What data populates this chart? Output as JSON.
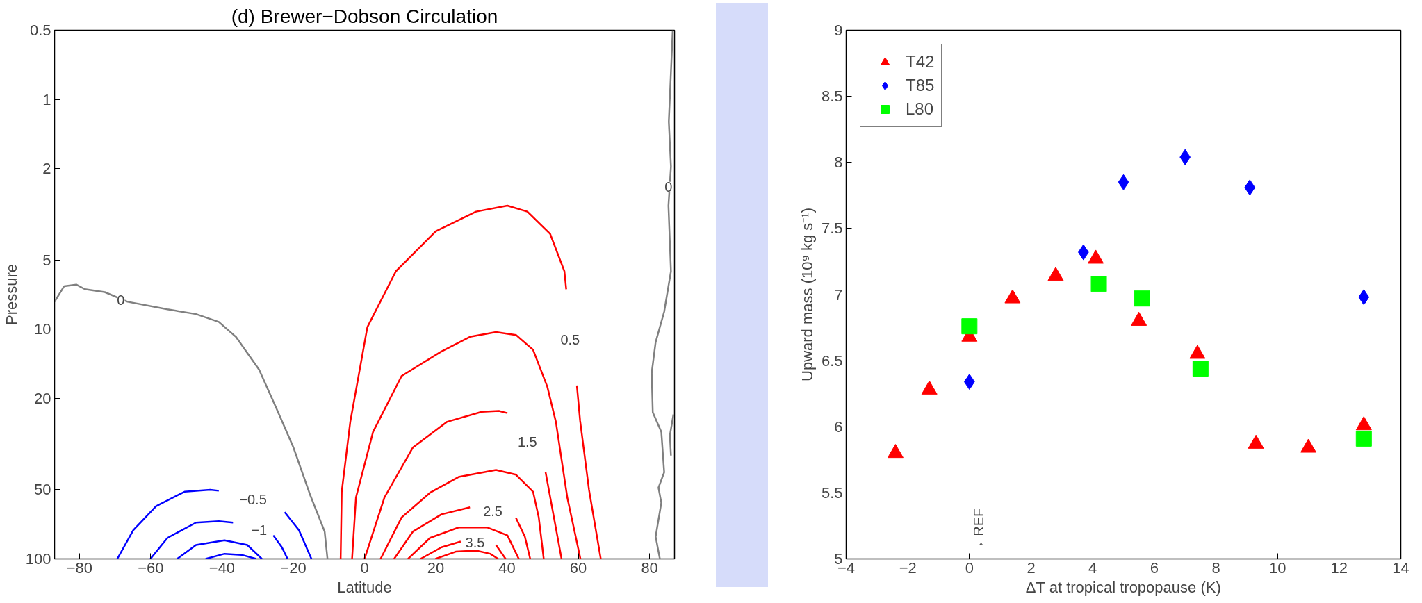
{
  "chart_data": [
    {
      "type": "line",
      "title": "(d) Brewer−Dobson Circulation",
      "xlabel": "Latitude",
      "ylabel": "Pressure",
      "log": "y",
      "xlim": [
        -87,
        87
      ],
      "xticks": [
        -80,
        -60,
        -40,
        -20,
        0,
        20,
        40,
        60,
        80
      ],
      "ylim": [
        100,
        0.5
      ],
      "yticks": [
        0.5,
        1,
        2,
        5,
        10,
        20,
        50,
        100
      ],
      "grid": false,
      "legend": false,
      "series": [
        {
          "color": "#808080",
          "x": [
            -87,
            -84.3,
            -80.9,
            -78.5,
            -72.9,
            -66.5,
            -55.3,
            -47.3,
            -40.9,
            -36.1,
            -29.6,
            -24.8,
            -20,
            -15.2,
            -11.2,
            -10.4
          ],
          "values": [
            7.6,
            6.5,
            6.4,
            6.7,
            6.9,
            7.6,
            8.2,
            8.6,
            9.3,
            10.8,
            15,
            22,
            32.6,
            53,
            76,
            100
          ]
        },
        {
          "color": "#808080",
          "x": [
            86.5,
            85.4,
            86,
            85.3,
            86,
            84.1,
            81.7,
            80.6,
            80.9,
            83.3,
            84.1,
            82.5,
            83.3,
            81.7,
            82.9
          ],
          "values": [
            0.5,
            1.25,
            1.96,
            2.9,
            5.6,
            8.4,
            11.4,
            15.5,
            23,
            28,
            42,
            49,
            57,
            80,
            100
          ]
        },
        {
          "color": "#808080",
          "x": [
            86.7,
            85.7,
            86
          ],
          "values": [
            23.5,
            29,
            35.5
          ]
        },
        {
          "color": "#0000ff",
          "x": [
            -69.4,
            -64.9,
            -58.5,
            -50.5,
            -43.3,
            -40.9,
            -31.3,
            -22.4,
            -18.4,
            -14.9
          ],
          "values": [
            100,
            75,
            59,
            51,
            50,
            50.5,
            null,
            62.6,
            75,
            100
          ]
        },
        {
          "color": "#0000ff",
          "x": [
            -60.1,
            -55.3,
            -47.3,
            -40.9,
            -36.9,
            -29.6,
            -25.6,
            -23.2,
            -21.6
          ],
          "values": [
            100,
            81,
            69.5,
            68.5,
            69.5,
            null,
            79,
            89,
            100
          ]
        },
        {
          "color": "#0000ff",
          "x": [
            -52.6,
            -47.3,
            -39.3,
            -32.9,
            -28.8
          ],
          "values": [
            100,
            87,
            83,
            87,
            100
          ]
        },
        {
          "color": "#0000ff",
          "x": [
            -44.6,
            -39.3,
            -34.5,
            -30.4
          ],
          "values": [
            100,
            95,
            96,
            100
          ]
        },
        {
          "color": "#ff0000",
          "x": [
            -6.7,
            -6.4,
            -4,
            0.8,
            8.8,
            20,
            31.3,
            40.1,
            45.7,
            52.1,
            56.1,
            56.6,
            57.7,
            59.6,
            60.5,
            63,
            66.3
          ],
          "values": [
            100,
            51,
            25.3,
            9.8,
            5.6,
            3.75,
            3.08,
            2.9,
            3.08,
            3.85,
            5.6,
            6.7,
            null,
            17.6,
            25,
            50,
            100
          ]
        },
        {
          "color": "#ff0000",
          "x": [
            -3.5,
            -2.4,
            2.4,
            10.4,
            21.6,
            29.6,
            36.9,
            42.5,
            47.3,
            51.3,
            53.7,
            56.9,
            60.6
          ],
          "values": [
            100,
            54,
            28,
            16,
            12.5,
            10.8,
            10.3,
            10.6,
            12.3,
            17.8,
            25.3,
            54,
            100
          ]
        },
        {
          "color": "#ff0000",
          "x": [
            0,
            5.6,
            13.6,
            23.2,
            32.9,
            37.7,
            40.1,
            45.7,
            50.8,
            55.3
          ],
          "values": [
            100,
            54,
            32.7,
            25.3,
            22.9,
            22.7,
            23.2,
            null,
            41.8,
            100
          ]
        },
        {
          "color": "#ff0000",
          "x": [
            4.5,
            10.4,
            18.4,
            26.4,
            36.9,
            42.5,
            47.3,
            48.9,
            50.3
          ],
          "values": [
            100,
            66,
            51.5,
            44,
            41,
            43,
            51,
            66,
            100
          ]
        },
        {
          "color": "#ff0000",
          "x": [
            8.3,
            13.6,
            21.6,
            29.6,
            36,
            42.5,
            45,
            46.5
          ],
          "values": [
            100,
            76,
            64,
            59.6,
            null,
            66.3,
            80,
            100
          ]
        },
        {
          "color": "#ff0000",
          "x": [
            12.2,
            18.4,
            26.4,
            34.5,
            40.1,
            43.3
          ],
          "values": [
            100,
            81,
            73,
            73,
            79,
            100
          ]
        },
        {
          "color": "#ff0000",
          "x": [
            15.7,
            21.6,
            27,
            31,
            36.9,
            39.6
          ],
          "values": [
            100,
            89,
            84,
            null,
            87,
            100
          ]
        },
        {
          "color": "#ff0000",
          "x": [
            19.9,
            25.6,
            31.3,
            35.3,
            37.5
          ],
          "values": [
            100,
            93,
            92,
            95,
            100
          ]
        }
      ],
      "annotations": [
        {
          "text": "0",
          "x": -68.4,
          "y": 7.5
        },
        {
          "text": "0",
          "x": 85.3,
          "y": 2.4
        },
        {
          "text": "0.5",
          "x": 57.7,
          "y": 11.1
        },
        {
          "text": "1.5",
          "x": 45.7,
          "y": 31
        },
        {
          "text": "2.5",
          "x": 36,
          "y": 62
        },
        {
          "text": "3.5",
          "x": 31,
          "y": 85
        },
        {
          "text": "−0.5",
          "x": -31.3,
          "y": 55
        },
        {
          "text": "−1",
          "x": -29.6,
          "y": 75
        }
      ]
    },
    {
      "type": "scatter",
      "xlabel": "ΔT at tropical tropopause (K)",
      "ylabel": "Upward mass (10⁹ kg s⁻¹)",
      "xlim": [
        -4,
        14
      ],
      "xticks": [
        -4,
        -2,
        0,
        2,
        4,
        6,
        8,
        10,
        12,
        14
      ],
      "ylim": [
        5,
        9
      ],
      "yticks": [
        5,
        5.5,
        6,
        6.5,
        7,
        7.5,
        8,
        8.5,
        9
      ],
      "grid": false,
      "legend": "top left",
      "series": [
        {
          "name": "T42",
          "color": "#ff0000",
          "marker": "triangle",
          "x": [
            -2.4,
            -1.3,
            0,
            1.4,
            2.8,
            4.1,
            5.5,
            7.4,
            9.3,
            11,
            12.8
          ],
          "values": [
            5.8,
            6.28,
            6.68,
            6.97,
            7.14,
            7.27,
            6.8,
            6.55,
            5.87,
            5.84,
            6.01
          ]
        },
        {
          "name": "T85",
          "color": "#0000ff",
          "marker": "diamond",
          "x": [
            0,
            3.7,
            5,
            7,
            9.1,
            12.8
          ],
          "values": [
            6.34,
            7.32,
            7.85,
            8.04,
            7.81,
            6.98
          ]
        },
        {
          "name": "L80",
          "color": "#00ff00",
          "marker": "square",
          "x": [
            0,
            4.2,
            5.6,
            7.5,
            12.8
          ],
          "values": [
            6.76,
            7.08,
            6.97,
            6.44,
            5.91
          ]
        }
      ],
      "annotations": [
        "→ REF"
      ]
    }
  ]
}
